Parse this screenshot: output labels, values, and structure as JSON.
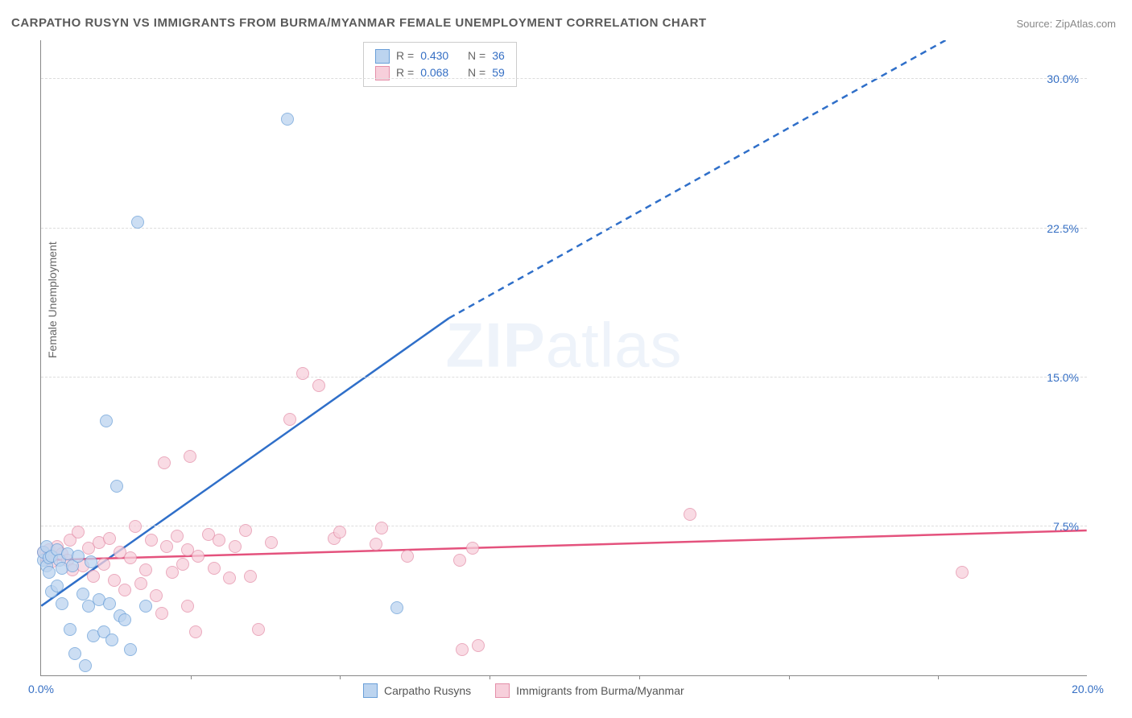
{
  "title": "CARPATHO RUSYN VS IMMIGRANTS FROM BURMA/MYANMAR FEMALE UNEMPLOYMENT CORRELATION CHART",
  "source": "Source: ZipAtlas.com",
  "ylabel": "Female Unemployment",
  "watermark": {
    "a": "ZIP",
    "b": "atlas"
  },
  "chart": {
    "type": "scatter",
    "xlim": [
      0,
      20
    ],
    "ylim": [
      0,
      32
    ],
    "xtick_labels": [
      {
        "v": 0,
        "label": "0.0%"
      },
      {
        "v": 20,
        "label": "20.0%"
      }
    ],
    "xticks_minor": [
      2.86,
      5.71,
      8.57,
      11.43,
      14.29,
      17.14
    ],
    "ytick_labels": [
      {
        "v": 7.5,
        "label": "7.5%"
      },
      {
        "v": 15.0,
        "label": "15.0%"
      },
      {
        "v": 22.5,
        "label": "22.5%"
      },
      {
        "v": 30.0,
        "label": "30.0%"
      }
    ],
    "grid_color": "#dddddd",
    "axis_color": "#888888",
    "background_color": "#ffffff",
    "marker_radius": 8
  },
  "series": {
    "blue": {
      "label": "Carpatho Rusyns",
      "fill": "#bcd4ef",
      "stroke": "#6a9fd8",
      "line_color": "#2f6fc9",
      "R": "0.430",
      "N": "36",
      "trend": {
        "x1": 0,
        "y1": 3.5,
        "x2": 7.8,
        "y2": 18.0,
        "dash_to_x": 17.3,
        "dash_to_y": 32.0
      },
      "points": [
        [
          0.05,
          5.8
        ],
        [
          0.05,
          6.2
        ],
        [
          0.1,
          5.5
        ],
        [
          0.1,
          6.5
        ],
        [
          0.15,
          5.9
        ],
        [
          0.15,
          5.2
        ],
        [
          0.2,
          6.0
        ],
        [
          0.2,
          4.2
        ],
        [
          0.3,
          6.3
        ],
        [
          0.3,
          4.5
        ],
        [
          0.35,
          5.8
        ],
        [
          0.4,
          5.4
        ],
        [
          0.4,
          3.6
        ],
        [
          0.5,
          6.1
        ],
        [
          0.55,
          2.3
        ],
        [
          0.6,
          5.5
        ],
        [
          0.65,
          1.1
        ],
        [
          0.7,
          6.0
        ],
        [
          0.8,
          4.1
        ],
        [
          0.85,
          0.5
        ],
        [
          0.9,
          3.5
        ],
        [
          0.95,
          5.7
        ],
        [
          1.0,
          2.0
        ],
        [
          1.1,
          3.8
        ],
        [
          1.2,
          2.2
        ],
        [
          1.25,
          12.8
        ],
        [
          1.3,
          3.6
        ],
        [
          1.35,
          1.8
        ],
        [
          1.45,
          9.5
        ],
        [
          1.5,
          3.0
        ],
        [
          1.6,
          2.8
        ],
        [
          1.7,
          1.3
        ],
        [
          1.85,
          22.8
        ],
        [
          2.0,
          3.5
        ],
        [
          4.7,
          28.0
        ],
        [
          6.8,
          3.4
        ]
      ]
    },
    "pink": {
      "label": "Immigrants from Burma/Myanmar",
      "fill": "#f7cfdb",
      "stroke": "#e48fa9",
      "line_color": "#e4527d",
      "R": "0.068",
      "N": "59",
      "trend": {
        "x1": 0,
        "y1": 5.8,
        "x2": 20,
        "y2": 7.3
      },
      "points": [
        [
          0.05,
          6.2
        ],
        [
          0.1,
          5.9
        ],
        [
          0.15,
          6.3
        ],
        [
          0.2,
          5.7
        ],
        [
          0.3,
          6.5
        ],
        [
          0.4,
          6.1
        ],
        [
          0.5,
          5.8
        ],
        [
          0.55,
          6.8
        ],
        [
          0.6,
          5.3
        ],
        [
          0.7,
          7.2
        ],
        [
          0.8,
          5.5
        ],
        [
          0.9,
          6.4
        ],
        [
          1.0,
          5.0
        ],
        [
          1.1,
          6.7
        ],
        [
          1.2,
          5.6
        ],
        [
          1.3,
          6.9
        ],
        [
          1.4,
          4.8
        ],
        [
          1.5,
          6.2
        ],
        [
          1.6,
          4.3
        ],
        [
          1.7,
          5.9
        ],
        [
          1.8,
          7.5
        ],
        [
          1.9,
          4.6
        ],
        [
          2.0,
          5.3
        ],
        [
          2.1,
          6.8
        ],
        [
          2.2,
          4.0
        ],
        [
          2.3,
          3.1
        ],
        [
          2.35,
          10.7
        ],
        [
          2.4,
          6.5
        ],
        [
          2.5,
          5.2
        ],
        [
          2.6,
          7.0
        ],
        [
          2.7,
          5.6
        ],
        [
          2.8,
          6.3
        ],
        [
          2.8,
          3.5
        ],
        [
          2.85,
          11.0
        ],
        [
          2.95,
          2.2
        ],
        [
          3.0,
          6.0
        ],
        [
          3.2,
          7.1
        ],
        [
          3.3,
          5.4
        ],
        [
          3.4,
          6.8
        ],
        [
          3.6,
          4.9
        ],
        [
          3.7,
          6.5
        ],
        [
          3.9,
          7.3
        ],
        [
          4.0,
          5.0
        ],
        [
          4.15,
          2.3
        ],
        [
          4.4,
          6.7
        ],
        [
          4.75,
          12.9
        ],
        [
          5.0,
          15.2
        ],
        [
          5.3,
          14.6
        ],
        [
          5.6,
          6.9
        ],
        [
          5.7,
          7.2
        ],
        [
          6.4,
          6.6
        ],
        [
          6.5,
          7.4
        ],
        [
          7.0,
          6.0
        ],
        [
          8.0,
          5.8
        ],
        [
          8.05,
          1.3
        ],
        [
          8.25,
          6.4
        ],
        [
          8.35,
          1.5
        ],
        [
          12.4,
          8.1
        ],
        [
          17.6,
          5.2
        ]
      ]
    }
  },
  "legend_stats_labels": {
    "R": "R =",
    "N": "N ="
  }
}
